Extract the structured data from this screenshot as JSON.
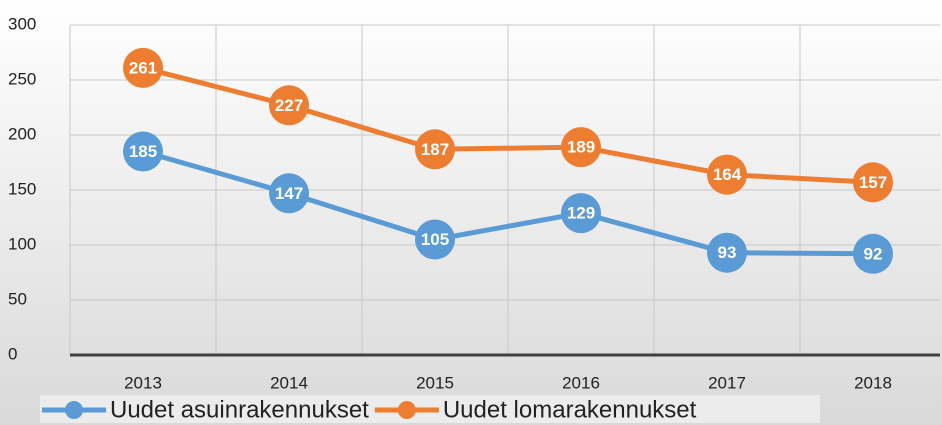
{
  "chart_data": {
    "type": "line",
    "categories": [
      "2013",
      "2014",
      "2015",
      "2016",
      "2017",
      "2018"
    ],
    "series": [
      {
        "name": "Uudet asuinrakennukset",
        "color": "#5b9bd5",
        "values": [
          185,
          147,
          105,
          129,
          93,
          92
        ]
      },
      {
        "name": "Uudet lomarakennukset",
        "color": "#ed7d31",
        "values": [
          261,
          227,
          187,
          189,
          164,
          157
        ]
      }
    ],
    "ylim": [
      0,
      300
    ],
    "yticks": [
      0,
      50,
      100,
      150,
      200,
      250,
      300
    ],
    "grid": true,
    "legend": "bottom"
  }
}
